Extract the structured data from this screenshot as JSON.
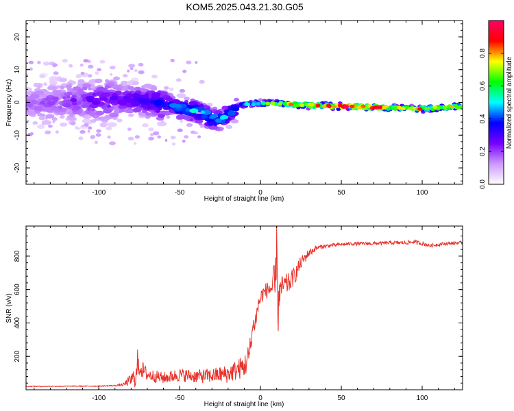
{
  "page_title": "KOM5.2025.043.21.30.G05",
  "chart_data": [
    {
      "type": "heatmap",
      "xlabel": "Height of straight line (km)",
      "ylabel": "Frequency (Hz)",
      "xlim": [
        -145,
        125
      ],
      "ylim": [
        -25,
        25
      ],
      "xticks": [
        -100,
        -50,
        0,
        50,
        100
      ],
      "yticks": [
        -20,
        -10,
        0,
        10,
        20
      ],
      "colorbar": {
        "label": "Normalized spectral amplitude",
        "range": [
          0,
          1
        ],
        "ticks": [
          "0.0",
          "0.2",
          "0.4",
          "0.6",
          "0.8"
        ],
        "colormap": [
          "#ffffff",
          "#cc99ff",
          "#7700ff",
          "#0000ff",
          "#00ffff",
          "#00ff00",
          "#ffff00",
          "#ff0000",
          "#ff0066"
        ]
      },
      "ridge": {
        "x": [
          -145,
          -120,
          -100,
          -85,
          -70,
          -60,
          -50,
          -42,
          -35,
          -30,
          -25,
          -20,
          -15,
          -13,
          -10,
          -5,
          0,
          10,
          20,
          30,
          50,
          70,
          90,
          100,
          110,
          125
        ],
        "y": [
          -0.5,
          0.5,
          0.8,
          1.0,
          0.5,
          -0.5,
          -1.5,
          -2.5,
          -3.5,
          -5.0,
          -5.0,
          -4.0,
          -2.0,
          -1.0,
          -0.6,
          -0.4,
          -0.2,
          -0.3,
          -0.6,
          -0.9,
          -1.2,
          -1.4,
          -1.8,
          -2.0,
          -1.6,
          -1.2
        ],
        "amplitude": [
          0.15,
          0.2,
          0.25,
          0.25,
          0.3,
          0.35,
          0.4,
          0.45,
          0.45,
          0.45,
          0.45,
          0.4,
          0.35,
          0.4,
          0.5,
          0.55,
          0.6,
          0.65,
          0.75,
          0.85,
          0.95,
          0.95,
          0.65,
          0.8,
          0.75,
          0.7
        ]
      }
    },
    {
      "type": "line",
      "xlabel": "Height of straight line (km)",
      "ylabel": "SNR (v/v)",
      "xlim": [
        -145,
        125
      ],
      "ylim": [
        0,
        980
      ],
      "xticks": [
        -100,
        -50,
        0,
        50,
        100
      ],
      "yticks": [
        200,
        400,
        600,
        800
      ],
      "series": [
        {
          "color": "#e8312a",
          "x": [
            -145,
            -100,
            -90,
            -85,
            -80,
            -77,
            -75,
            -70,
            -60,
            -50,
            -40,
            -30,
            -20,
            -10,
            -7,
            -5,
            -3,
            -1,
            1,
            3,
            5,
            7,
            8,
            9,
            10,
            11,
            12,
            14,
            18,
            22,
            25,
            30,
            35,
            40,
            50,
            60,
            70,
            80,
            90,
            95,
            100,
            105,
            110,
            115,
            120,
            125
          ],
          "y": [
            20,
            22,
            25,
            30,
            60,
            80,
            140,
            90,
            70,
            90,
            80,
            85,
            95,
            140,
            200,
            360,
            420,
            520,
            570,
            590,
            600,
            610,
            590,
            620,
            580,
            560,
            590,
            620,
            640,
            700,
            760,
            820,
            850,
            860,
            870,
            875,
            875,
            880,
            880,
            885,
            875,
            862,
            870,
            875,
            878,
            880
          ],
          "noise": [
            3,
            3,
            4,
            8,
            40,
            70,
            60,
            40,
            35,
            40,
            40,
            45,
            55,
            70,
            90,
            60,
            60,
            55,
            50,
            50,
            50,
            90,
            140,
            180,
            250,
            160,
            80,
            70,
            60,
            50,
            40,
            25,
            15,
            12,
            10,
            10,
            10,
            10,
            12,
            12,
            12,
            10,
            10,
            10,
            10,
            10
          ],
          "peaks": [
            {
              "x": -76,
              "y": 240
            },
            {
              "x": 10,
              "y": 980
            },
            {
              "x": 11,
              "y": 350
            }
          ]
        }
      ]
    }
  ]
}
